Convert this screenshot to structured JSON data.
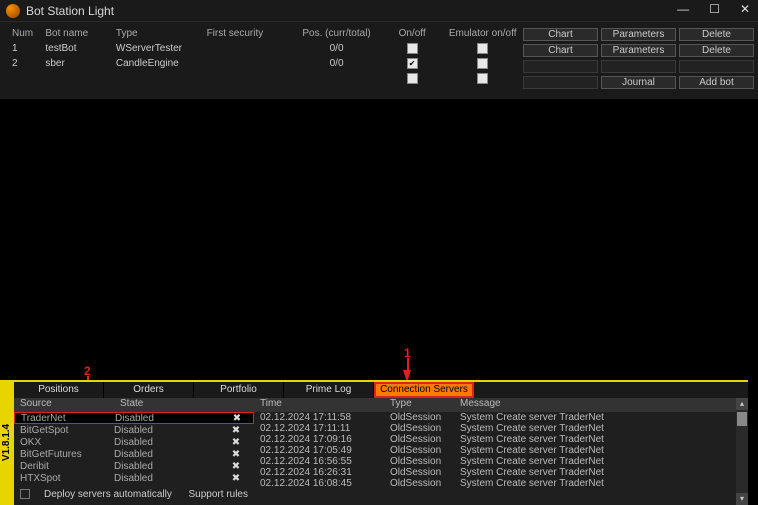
{
  "window": {
    "title": "Bot Station Light"
  },
  "version": "V1.8.1.4",
  "callouts": {
    "one": "1",
    "two": "2"
  },
  "bot_table": {
    "headers": [
      "Num",
      "Bot name",
      "Type",
      "First security",
      "Pos. (curr/total)",
      "On/off",
      "Emulator on/off"
    ],
    "rows": [
      {
        "num": "1",
        "name": "testBot",
        "type": "WServerTester",
        "first": "",
        "pos": "0/0",
        "on": false,
        "emu": false
      },
      {
        "num": "2",
        "name": "sber",
        "type": "CandleEngine",
        "first": "",
        "pos": "0/0",
        "on": true,
        "emu": false
      }
    ]
  },
  "buttons": {
    "row1": [
      "Chart",
      "Parameters",
      "Delete"
    ],
    "row2": [
      "Chart",
      "Parameters",
      "Delete"
    ],
    "row3": [
      "",
      "",
      ""
    ],
    "row4": [
      "",
      "Journal",
      "Add bot"
    ]
  },
  "tabs": [
    "Positions",
    "Orders",
    "Portfolio",
    "Prime Log",
    "Connection Servers"
  ],
  "active_tab": 4,
  "server_panel": {
    "headers": [
      "Source",
      "State"
    ],
    "rows": [
      {
        "src": "TraderNet",
        "state": "Disabled",
        "sel": true
      },
      {
        "src": "BitGetSpot",
        "state": "Disabled",
        "sel": false
      },
      {
        "src": "OKX",
        "state": "Disabled",
        "sel": false
      },
      {
        "src": "BitGetFutures",
        "state": "Disabled",
        "sel": false
      },
      {
        "src": "Deribit",
        "state": "Disabled",
        "sel": false
      },
      {
        "src": "HTXSpot",
        "state": "Disabled",
        "sel": false
      }
    ],
    "deploy_label": "Deploy servers automatically",
    "support_label": "Support rules"
  },
  "log_panel": {
    "headers": [
      "Time",
      "Type",
      "Message"
    ],
    "rows": [
      {
        "t": "02.12.2024 17:11:58",
        "ty": "OldSession",
        "m": "System Create server TraderNet"
      },
      {
        "t": "02.12.2024 17:11:11",
        "ty": "OldSession",
        "m": "System Create server TraderNet"
      },
      {
        "t": "02.12.2024 17:09:16",
        "ty": "OldSession",
        "m": "System Create server TraderNet"
      },
      {
        "t": "02.12.2024 17:05:49",
        "ty": "OldSession",
        "m": "System Create server TraderNet"
      },
      {
        "t": "02.12.2024 16:56:55",
        "ty": "OldSession",
        "m": "System Create server TraderNet"
      },
      {
        "t": "02.12.2024 16:26:31",
        "ty": "OldSession",
        "m": "System Create server TraderNet"
      },
      {
        "t": "02.12.2024 16:08:45",
        "ty": "OldSession",
        "m": "System Create server TraderNet"
      }
    ]
  },
  "colors": {
    "accent": "#ff7a00",
    "highlight": "#e6d500",
    "callout": "#d22222",
    "bg": "#000000",
    "panel": "#1a1a1a"
  }
}
